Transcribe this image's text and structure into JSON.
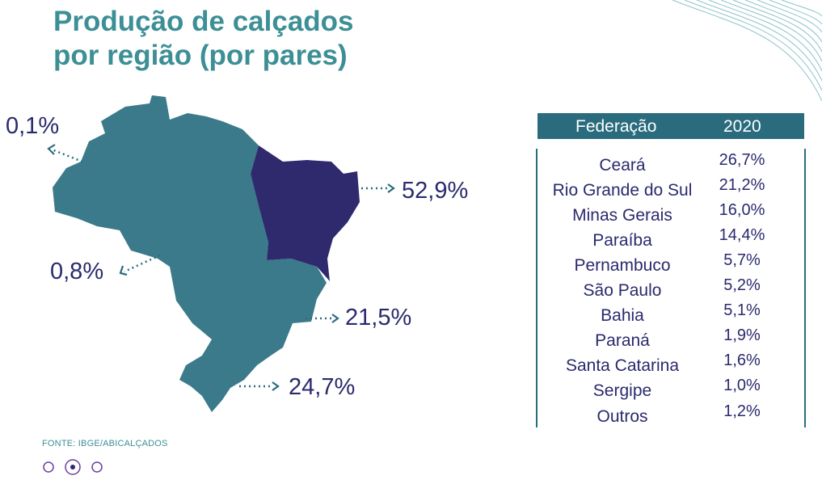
{
  "title_line1": "Produção de calçados",
  "title_line2": "por região (por pares)",
  "colors": {
    "accent": "#3d8f96",
    "map_region": "#3a7a8a",
    "map_highlight": "#2f2a6e",
    "text_dark": "#2a2a6e",
    "table_header": "#2a6c7e"
  },
  "regions": {
    "norte": "0,1%",
    "nordeste": "52,9%",
    "centro_oeste": "0,8%",
    "sudeste": "21,5%",
    "sul": "24,7%"
  },
  "table": {
    "header_left": "Federação",
    "header_right": "2020",
    "rows": [
      {
        "state": "Ceará",
        "value": "26,7%"
      },
      {
        "state": "Rio Grande do Sul",
        "value": "21,2%"
      },
      {
        "state": "Minas Gerais",
        "value": "16,0%"
      },
      {
        "state": "Paraíba",
        "value": "14,4%"
      },
      {
        "state": "Pernambuco",
        "value": "5,7%"
      },
      {
        "state": "São Paulo",
        "value": "5,2%"
      },
      {
        "state": "Bahia",
        "value": "5,1%"
      },
      {
        "state": "Paraná",
        "value": "1,9%"
      },
      {
        "state": "Santa Catarina",
        "value": "1,6%"
      },
      {
        "state": "Sergipe",
        "value": "1,0%"
      },
      {
        "state": "Outros",
        "value": "1,2%"
      }
    ]
  },
  "source": "FONTE: IBGE/ABICALÇADOS",
  "pagination": {
    "current": 2,
    "total": 3
  }
}
